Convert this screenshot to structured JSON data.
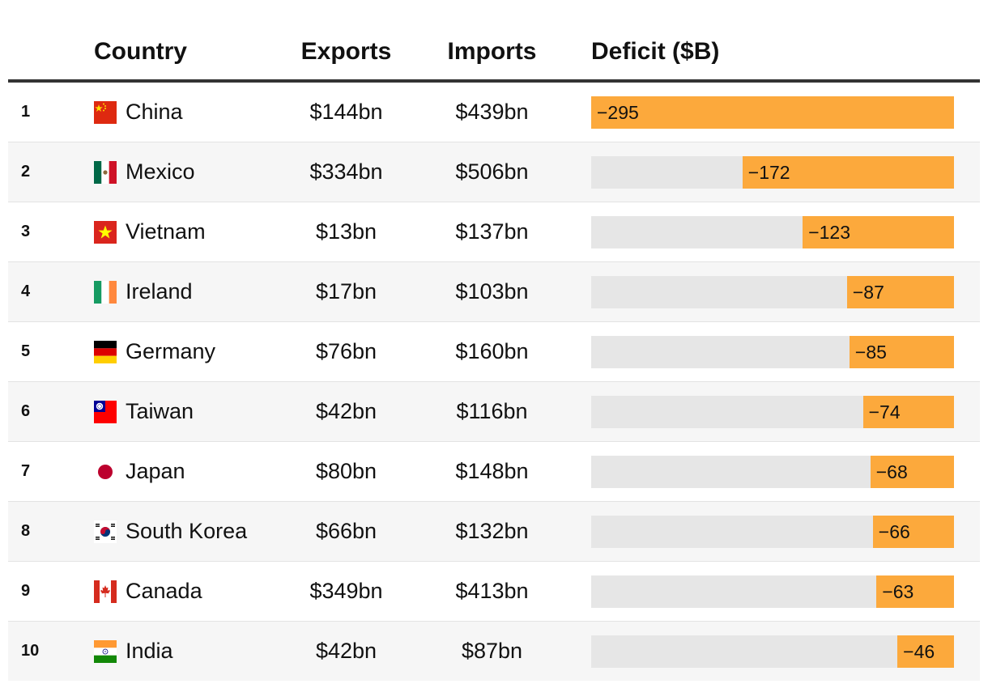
{
  "header": {
    "country": "Country",
    "exports": "Exports",
    "imports": "Imports",
    "deficit": "Deficit ($B)"
  },
  "colors": {
    "bar": "#fca93c",
    "track": "#e6e6e6",
    "rule": "#333333"
  },
  "chart_data": {
    "type": "table",
    "title": "Deficit ($B)",
    "columns": [
      "",
      "Country",
      "Exports",
      "Imports",
      "Deficit ($B)"
    ],
    "max": 295,
    "rows": [
      {
        "rank": "1",
        "country": "China",
        "flag": "china-flag-icon",
        "exports": "$144bn",
        "imports": "$439bn",
        "deficit": -295,
        "deficit_label": "−295"
      },
      {
        "rank": "2",
        "country": "Mexico",
        "flag": "mexico-flag-icon",
        "exports": "$334bn",
        "imports": "$506bn",
        "deficit": -172,
        "deficit_label": "−172"
      },
      {
        "rank": "3",
        "country": "Vietnam",
        "flag": "vietnam-flag-icon",
        "exports": "$13bn",
        "imports": "$137bn",
        "deficit": -123,
        "deficit_label": "−123"
      },
      {
        "rank": "4",
        "country": "Ireland",
        "flag": "ireland-flag-icon",
        "exports": "$17bn",
        "imports": "$103bn",
        "deficit": -87,
        "deficit_label": "−87"
      },
      {
        "rank": "5",
        "country": "Germany",
        "flag": "germany-flag-icon",
        "exports": "$76bn",
        "imports": "$160bn",
        "deficit": -85,
        "deficit_label": "−85"
      },
      {
        "rank": "6",
        "country": "Taiwan",
        "flag": "taiwan-flag-icon",
        "exports": "$42bn",
        "imports": "$116bn",
        "deficit": -74,
        "deficit_label": "−74"
      },
      {
        "rank": "7",
        "country": "Japan",
        "flag": "japan-flag-icon",
        "exports": "$80bn",
        "imports": "$148bn",
        "deficit": -68,
        "deficit_label": "−68"
      },
      {
        "rank": "8",
        "country": "South Korea",
        "flag": "south-korea-flag-icon",
        "exports": "$66bn",
        "imports": "$132bn",
        "deficit": -66,
        "deficit_label": "−66"
      },
      {
        "rank": "9",
        "country": "Canada",
        "flag": "canada-flag-icon",
        "exports": "$349bn",
        "imports": "$413bn",
        "deficit": -63,
        "deficit_label": "−63"
      },
      {
        "rank": "10",
        "country": "India",
        "flag": "india-flag-icon",
        "exports": "$42bn",
        "imports": "$87bn",
        "deficit": -46,
        "deficit_label": "−46"
      }
    ]
  }
}
